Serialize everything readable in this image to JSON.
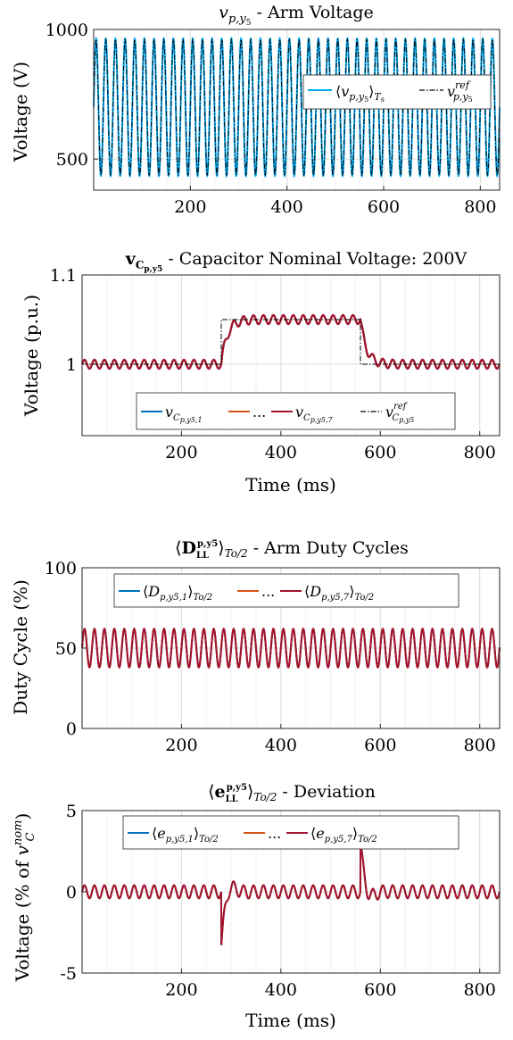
{
  "chart_data": [
    {
      "id": "arm_voltage",
      "type": "line",
      "title": "v_{p,y5} - Arm Voltage",
      "xlabel": "",
      "ylabel": "Voltage (V)",
      "xlim": [
        0,
        840
      ],
      "ylim": [
        380,
        1000
      ],
      "xticks": [
        200,
        400,
        600,
        800
      ],
      "yticks": [
        500,
        1000
      ],
      "grid": true,
      "legend": "right",
      "series": [
        {
          "name": "⟨v_{p,y5}⟩_{Ts}",
          "color": "#00a8f0",
          "style": "solid",
          "offset": 700,
          "amplitude": 265,
          "freq_per_ms": 0.05
        },
        {
          "name": "v_{p,y5}^{ref}",
          "color": "#000000",
          "style": "dashdot",
          "offset": 700,
          "amplitude": 262,
          "freq_per_ms": 0.05
        }
      ]
    },
    {
      "id": "capacitor_voltage",
      "type": "line",
      "title": "v_{Cp,y5} - Capacitor Nominal Voltage: 200V",
      "xlabel": "Time (ms)",
      "ylabel": "Voltage (p.u.)",
      "xlim": [
        0,
        840
      ],
      "ylim": [
        0.92,
        1.1
      ],
      "xticks": [
        200,
        400,
        600,
        800
      ],
      "yticks": [
        1,
        1.1
      ],
      "ytick_labels": [
        "1",
        "1.1"
      ],
      "grid": true,
      "legend": "bottom",
      "reference": {
        "name": "v_{Cp,y5}^{ref}",
        "color": "#000000",
        "style": "dashdot",
        "steps": [
          [
            0,
            1.0
          ],
          [
            280,
            1.0
          ],
          [
            280,
            1.05
          ],
          [
            560,
            1.05
          ],
          [
            560,
            1.0
          ],
          [
            840,
            1.0
          ]
        ]
      },
      "series": [
        {
          "name": "v_{Cp,y5,1}",
          "color": "#0072bd"
        },
        {
          "name": "...",
          "color": "#d95319"
        },
        {
          "name": "v_{Cp,y5,7}",
          "color": "#a2142f"
        }
      ],
      "ripple_amplitude": 0.005,
      "freq_per_ms": 0.05
    },
    {
      "id": "duty_cycles",
      "type": "line",
      "title": "⟨D_LL^{p,y5}⟩_{To/2} - Arm Duty Cycles",
      "xlabel": "",
      "ylabel": "Duty Cycle (%)",
      "xlim": [
        0,
        840
      ],
      "ylim": [
        0,
        100
      ],
      "xticks": [
        200,
        400,
        600,
        800
      ],
      "yticks": [
        0,
        50,
        100
      ],
      "grid": true,
      "legend": "top",
      "series": [
        {
          "name": "⟨D_{p,y5,1}⟩_{To/2}",
          "color": "#0072bd"
        },
        {
          "name": "...",
          "color": "#d95319"
        },
        {
          "name": "⟨D_{p,y5,7}⟩_{To/2}",
          "color": "#a2142f"
        }
      ],
      "offset": 50,
      "amplitude": 12,
      "freq_per_ms": 0.05
    },
    {
      "id": "deviation",
      "type": "line",
      "title": "⟨e_LL^{p,y5}⟩_{To/2} - Deviation",
      "xlabel": "Time (ms)",
      "ylabel": "Voltage (% of v_C^{nom})",
      "xlim": [
        0,
        840
      ],
      "ylim": [
        -5,
        5
      ],
      "xticks": [
        200,
        400,
        600,
        800
      ],
      "yticks": [
        -5,
        0,
        5
      ],
      "grid": true,
      "legend": "top",
      "series": [
        {
          "name": "⟨e_{p,y5,1}⟩_{To/2}",
          "color": "#0072bd"
        },
        {
          "name": "...",
          "color": "#d95319"
        },
        {
          "name": "⟨e_{p,y5,7}⟩_{To/2}",
          "color": "#a2142f"
        }
      ],
      "ripple_amplitude": 0.4,
      "freq_per_ms": 0.05,
      "transients": [
        {
          "t": 280,
          "peak": -3.4
        },
        {
          "t": 560,
          "peak": 3.0
        }
      ]
    }
  ]
}
